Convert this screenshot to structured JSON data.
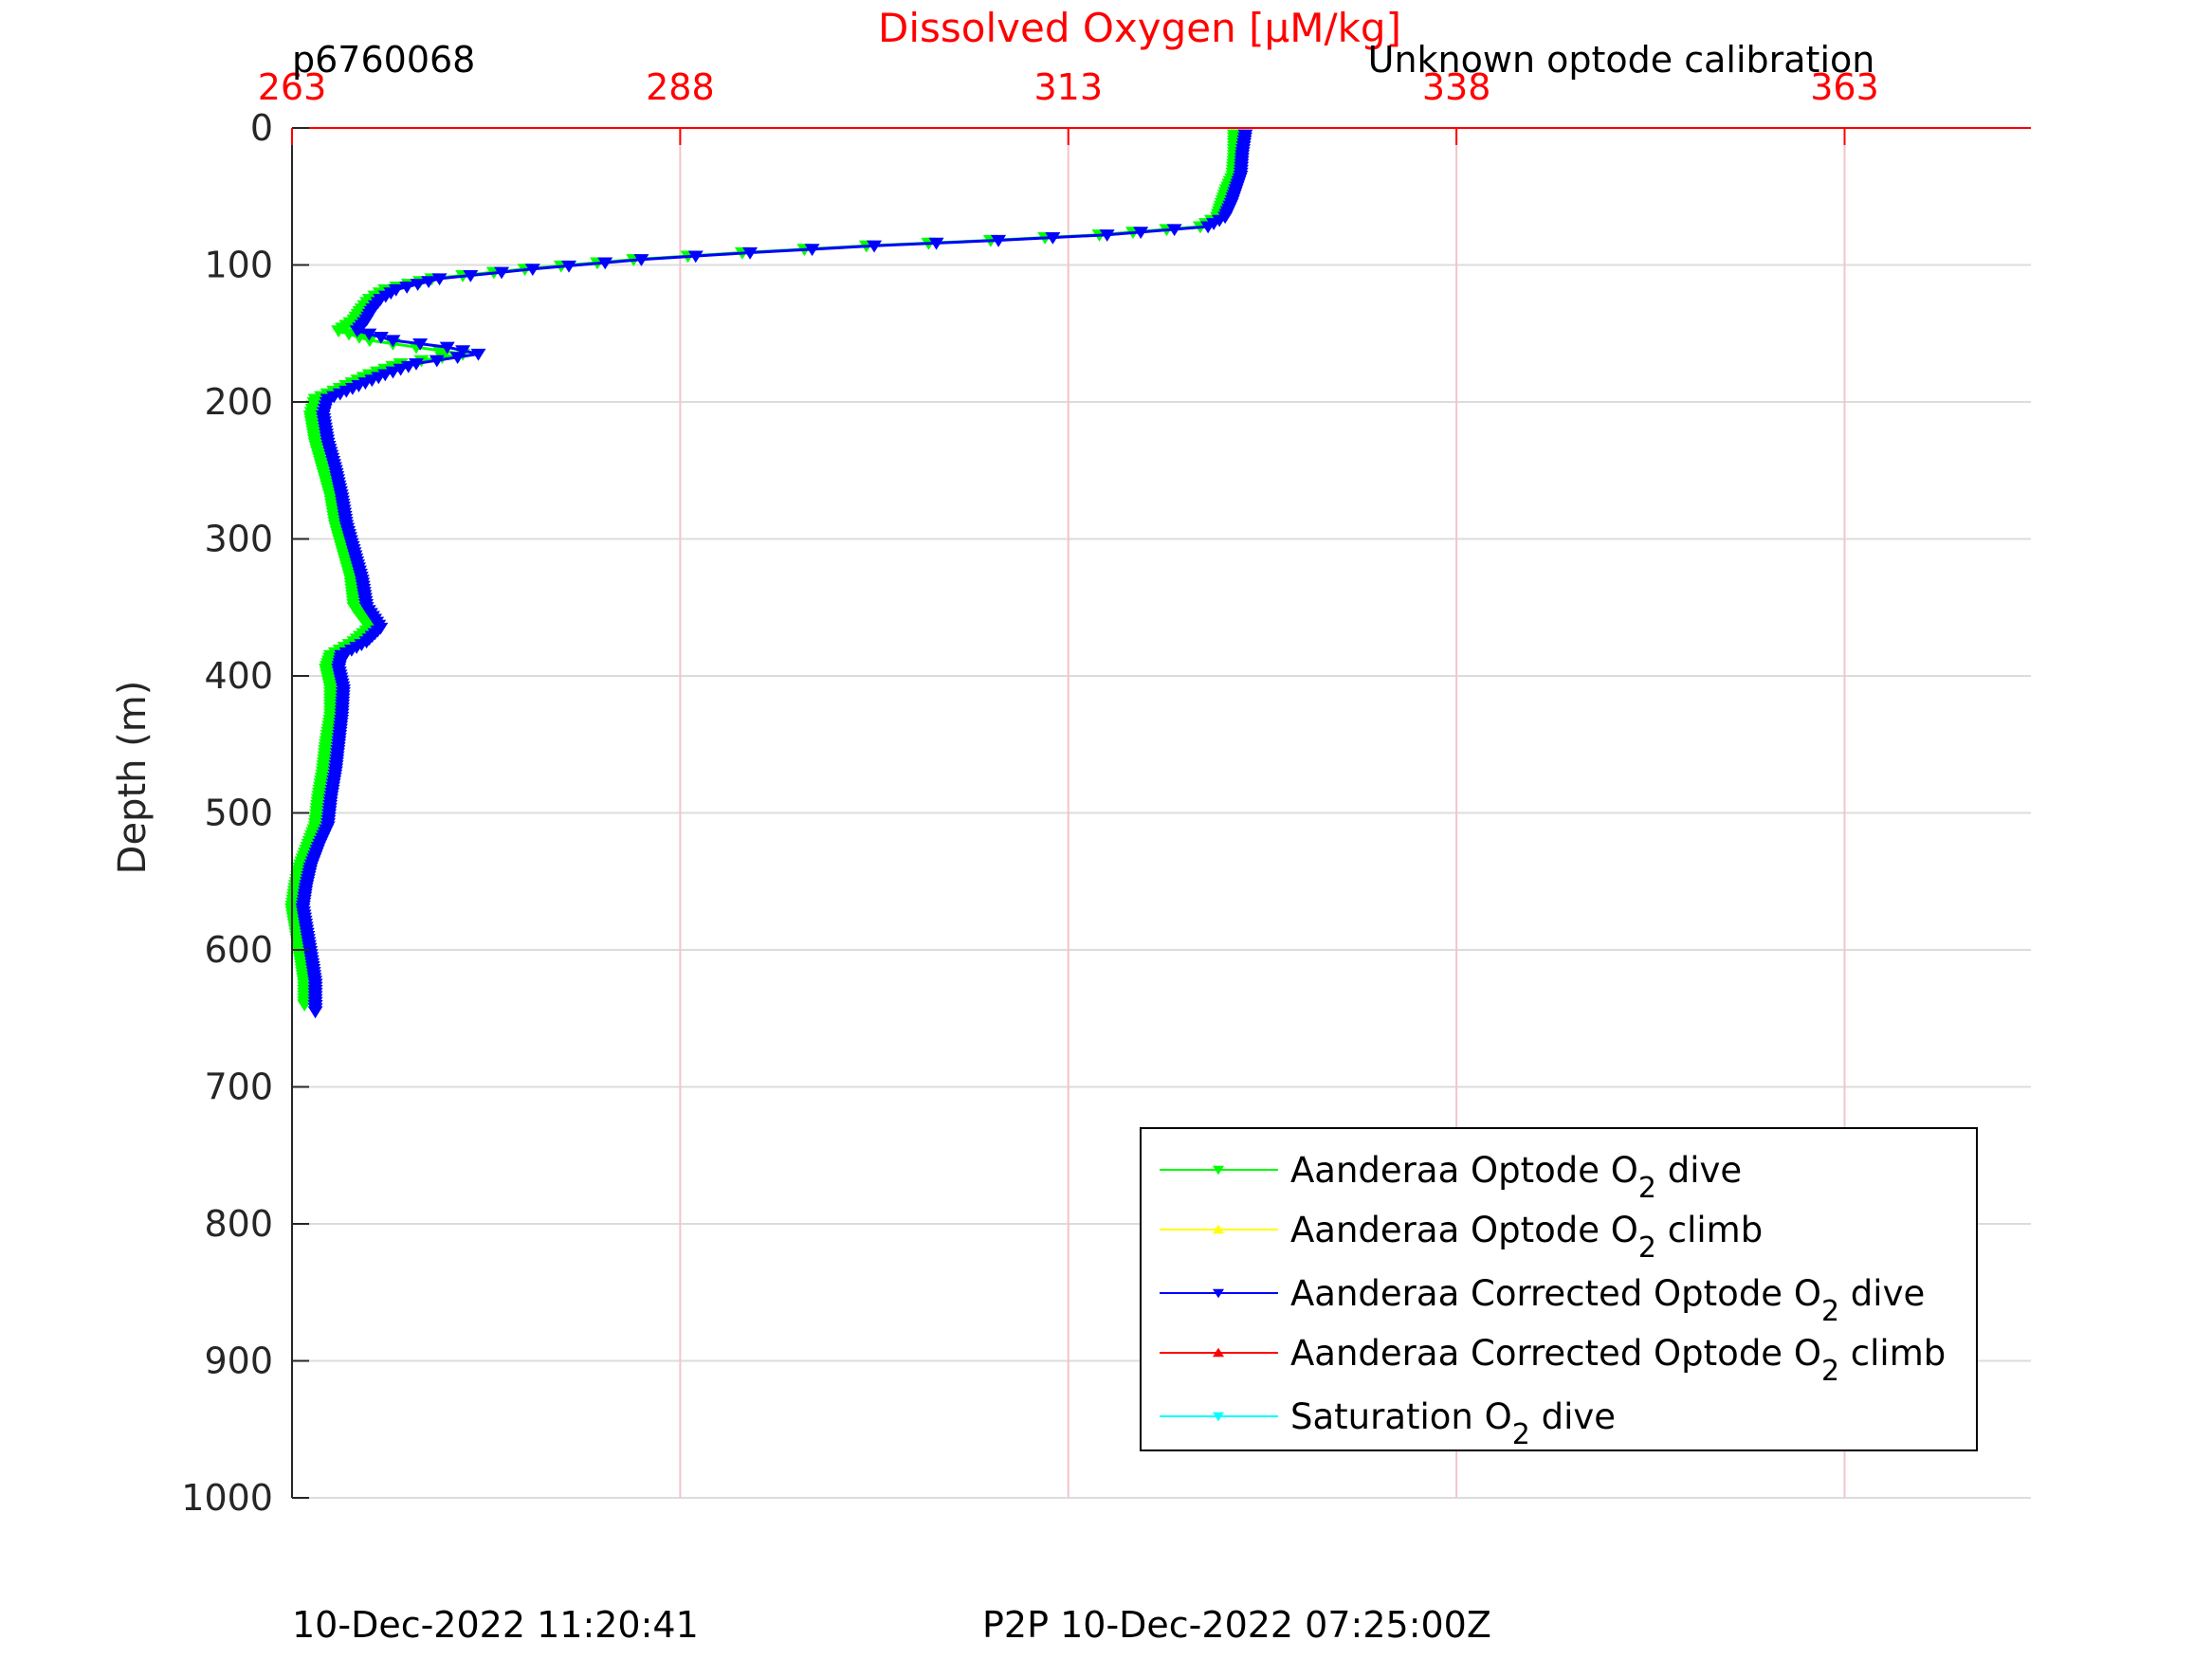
{
  "chart_data": {
    "type": "line",
    "title": "Dissolved Oxygen [μM/kg]",
    "top_left_label": "p6760068",
    "top_right_label": "Unknown optode calibration",
    "ylabel": "Depth (m)",
    "xlim": [
      263,
      375
    ],
    "ylim": [
      0,
      1000
    ],
    "y_reversed": true,
    "x_axis_position": "top",
    "x_ticks": [
      263,
      288,
      313,
      338,
      363
    ],
    "y_ticks": [
      0,
      100,
      200,
      300,
      400,
      500,
      600,
      700,
      800,
      900,
      1000
    ],
    "grid": true,
    "legend_position": "bottom-right",
    "colors": {
      "title": "#ff0000",
      "x_ticks": "#ff0000",
      "grid_x": "#f2c4cc",
      "grid_y": "#dcdcdc",
      "axis": "#262626"
    },
    "series": [
      {
        "name": "Aanderaa Optode O₂ dive",
        "legend": [
          "Aanderaa Optode O",
          "2",
          " dive"
        ],
        "color": "#00ff00",
        "marker": "triangle-down",
        "points": [
          [
            323.7,
            5
          ],
          [
            323.7,
            20
          ],
          [
            323.6,
            35
          ],
          [
            323.2,
            45
          ],
          [
            322.9,
            55
          ],
          [
            322.6,
            65
          ],
          [
            321.5,
            72
          ],
          [
            315,
            78
          ],
          [
            308,
            82
          ],
          [
            300,
            86
          ],
          [
            292,
            91
          ],
          [
            285,
            96
          ],
          [
            278,
            103
          ],
          [
            272,
            110
          ],
          [
            269,
            118
          ],
          [
            268,
            125
          ],
          [
            267.5,
            132
          ],
          [
            267,
            140
          ],
          [
            266,
            148
          ],
          [
            268,
            155
          ],
          [
            271,
            160
          ],
          [
            274,
            165
          ],
          [
            270,
            172
          ],
          [
            268,
            180
          ],
          [
            266.5,
            188
          ],
          [
            264.5,
            198
          ],
          [
            264.2,
            210
          ],
          [
            264.5,
            230
          ],
          [
            265,
            250
          ],
          [
            265.5,
            270
          ],
          [
            265.8,
            290
          ],
          [
            266.3,
            310
          ],
          [
            266.8,
            330
          ],
          [
            267,
            350
          ],
          [
            268,
            365
          ],
          [
            267,
            375
          ],
          [
            265.5,
            385
          ],
          [
            265.2,
            395
          ],
          [
            265.5,
            410
          ],
          [
            265.5,
            430
          ],
          [
            265.2,
            450
          ],
          [
            265,
            470
          ],
          [
            264.7,
            490
          ],
          [
            264.5,
            510
          ],
          [
            264,
            525
          ],
          [
            263.5,
            540
          ],
          [
            263.2,
            555
          ],
          [
            263,
            570
          ],
          [
            263.3,
            590
          ],
          [
            263.6,
            610
          ],
          [
            263.8,
            625
          ],
          [
            263.8,
            640
          ]
        ]
      },
      {
        "name": "Aanderaa Optode O₂ climb",
        "legend": [
          "Aanderaa Optode O",
          "2",
          " climb"
        ],
        "color": "#ffff00",
        "marker": "triangle-up",
        "points": []
      },
      {
        "name": "Aanderaa Corrected Optode O₂ dive",
        "legend": [
          "Aanderaa Corrected Optode O",
          "2",
          " dive"
        ],
        "color": "#0000ff",
        "marker": "triangle-down",
        "points": [
          [
            324.4,
            5
          ],
          [
            324.2,
            20
          ],
          [
            324.1,
            35
          ],
          [
            323.8,
            45
          ],
          [
            323.5,
            55
          ],
          [
            323.1,
            65
          ],
          [
            322,
            72
          ],
          [
            315.5,
            78
          ],
          [
            308.5,
            82
          ],
          [
            300.5,
            86
          ],
          [
            292.5,
            91
          ],
          [
            285.5,
            96
          ],
          [
            278.5,
            103
          ],
          [
            272.5,
            110
          ],
          [
            269.7,
            118
          ],
          [
            268.7,
            125
          ],
          [
            268.2,
            132
          ],
          [
            267.8,
            140
          ],
          [
            267.2,
            148
          ],
          [
            269.5,
            155
          ],
          [
            273,
            160
          ],
          [
            275,
            165
          ],
          [
            271,
            172
          ],
          [
            269,
            180
          ],
          [
            267.3,
            188
          ],
          [
            265.3,
            198
          ],
          [
            265,
            210
          ],
          [
            265.3,
            230
          ],
          [
            265.8,
            250
          ],
          [
            266.2,
            270
          ],
          [
            266.5,
            290
          ],
          [
            267,
            310
          ],
          [
            267.5,
            330
          ],
          [
            267.8,
            350
          ],
          [
            268.7,
            365
          ],
          [
            267.8,
            375
          ],
          [
            266.2,
            385
          ],
          [
            266,
            395
          ],
          [
            266.3,
            410
          ],
          [
            266.2,
            430
          ],
          [
            266,
            450
          ],
          [
            265.8,
            470
          ],
          [
            265.5,
            490
          ],
          [
            265.3,
            510
          ],
          [
            264.7,
            525
          ],
          [
            264.2,
            540
          ],
          [
            263.9,
            555
          ],
          [
            263.7,
            570
          ],
          [
            264,
            590
          ],
          [
            264.3,
            610
          ],
          [
            264.5,
            625
          ],
          [
            264.5,
            645
          ]
        ]
      },
      {
        "name": "Aanderaa Corrected Optode O₂ climb",
        "legend": [
          "Aanderaa Corrected Optode O",
          "2",
          " climb"
        ],
        "color": "#ff0000",
        "marker": "triangle-up",
        "points": []
      },
      {
        "name": "Saturation O₂ dive",
        "legend": [
          "Saturation O",
          "2",
          " dive"
        ],
        "color": "#00ffff",
        "marker": "triangle-down",
        "points": []
      }
    ]
  },
  "footer": {
    "timestamp": "10-Dec-2022 11:20:41",
    "p2p": "P2P 10-Dec-2022 07:25:00Z"
  }
}
